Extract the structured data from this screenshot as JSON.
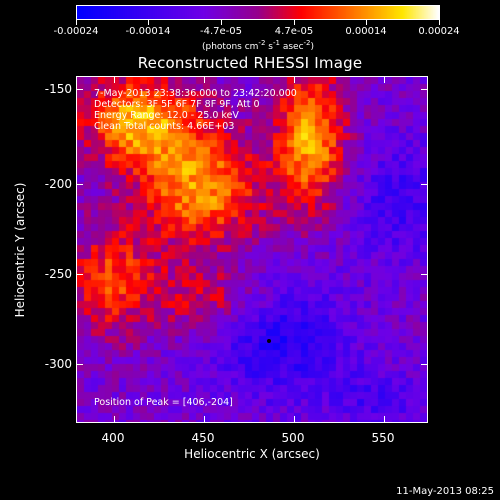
{
  "colorbar": {
    "tick_labels": [
      "-0.00024",
      "-0.00014",
      "-4.7e-05",
      "4.7e-05",
      "0.00014",
      "0.00024"
    ],
    "units_prefix": "(photons cm",
    "units_exp1": "-2",
    "units_mid": " s",
    "units_exp2": "-1",
    "units_mid2": " asec",
    "units_exp3": "-2",
    "units_suffix": ")"
  },
  "title": "Reconstructed RHESSI Image",
  "overlay": {
    "time_range": "7-May-2013 23:38:36.000 to 23:42:20.000",
    "detectors": "Detectors: 3F 5F 6F 7F 8F 9F, Att 0",
    "energy_range": "Energy Range: 12.0 - 25.0 keV",
    "clean": "Clean    Total counts: 4.66E+03",
    "peak": "Position of Peak = [406,-204]"
  },
  "axes": {
    "x_label": "Heliocentric X (arcsec)",
    "y_label": "Heliocentric Y (arcsec)",
    "x_tick_labels": [
      "400",
      "450",
      "500",
      "550"
    ],
    "y_tick_labels": [
      "-150",
      "-200",
      "-250",
      "-300"
    ]
  },
  "footer": {
    "timestamp": "11-May-2013 08:25"
  },
  "colors": {
    "background": "#000000",
    "low": "#0000ff",
    "mid": "#7f00ff",
    "high": "#ff0000",
    "top": "#ffffff"
  }
}
